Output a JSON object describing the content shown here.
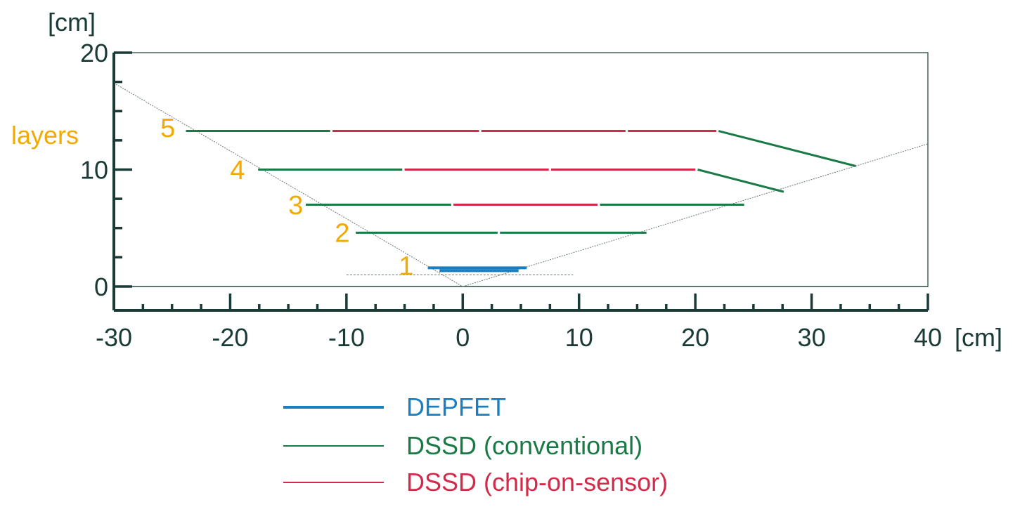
{
  "colors": {
    "axis": "#1a3a36",
    "layer_label": "#f2a900",
    "depfet": "#1a7fc1",
    "dssd_conventional": "#1a7a46",
    "dssd_chip_on_sensor": "#d32a4a",
    "acceptance": "#6a7a78"
  },
  "axes": {
    "y_unit_label": "[cm]",
    "x_unit_label": "[cm]",
    "x_range": [
      -30,
      40
    ],
    "y_range": [
      0,
      20
    ],
    "x_major_ticks": [
      -30,
      -20,
      -10,
      0,
      10,
      20,
      30,
      40
    ],
    "x_tick_labels": [
      "-30",
      "-20",
      "-10",
      "0",
      "10",
      "20",
      "30",
      "40"
    ],
    "y_major_ticks": [
      0,
      10,
      20
    ],
    "y_tick_labels": [
      "0",
      "10",
      "20"
    ],
    "x_minor_step": 2.5,
    "y_minor_step": 2.5
  },
  "layers_label": "layers",
  "layer_numbers": [
    {
      "text": "5",
      "x": -26,
      "y": 12.8
    },
    {
      "text": "4",
      "x": -20,
      "y": 9.2
    },
    {
      "text": "3",
      "x": -15,
      "y": 6.2
    },
    {
      "text": "2",
      "x": -11,
      "y": 3.8
    },
    {
      "text": "1",
      "x": -5.5,
      "y": 1.0
    }
  ],
  "chart_data": {
    "type": "diagram",
    "xlabel": "[cm]",
    "ylabel": "[cm]",
    "xlim": [
      -30,
      40
    ],
    "ylim": [
      0,
      20
    ],
    "acceptance_lines": [
      {
        "x1": -30,
        "y1": 17.4,
        "x2": 0,
        "y2": 0
      },
      {
        "x1": 0,
        "y1": 0,
        "x2": 40,
        "y2": 12.2
      }
    ],
    "beam_line": {
      "x1": -10,
      "y1": 1.0,
      "x2": 9.5,
      "y2": 1.0
    },
    "segments": [
      {
        "kind": "depfet",
        "x1": -3,
        "x2": 5.5,
        "y": 1.6
      },
      {
        "kind": "depfet",
        "x1": -2,
        "x2": 4.8,
        "y": 1.35
      },
      {
        "kind": "dssd_conventional",
        "x1": -9.2,
        "x2": 3.0,
        "y": 4.6
      },
      {
        "kind": "dssd_conventional",
        "x1": 3.2,
        "x2": 15.8,
        "y": 4.6
      },
      {
        "kind": "dssd_conventional",
        "x1": -13.5,
        "x2": -1.0,
        "y": 7.0
      },
      {
        "kind": "dssd_chip_on_sensor",
        "x1": -0.8,
        "x2": 11.6,
        "y": 7.0
      },
      {
        "kind": "dssd_conventional",
        "x1": 11.8,
        "x2": 24.2,
        "y": 7.0
      },
      {
        "kind": "dssd_conventional",
        "x1": -17.6,
        "x2": -5.2,
        "y": 10.0
      },
      {
        "kind": "dssd_chip_on_sensor",
        "x1": -5.0,
        "x2": 7.4,
        "y": 10.0
      },
      {
        "kind": "dssd_chip_on_sensor",
        "x1": 7.6,
        "x2": 20.0,
        "y": 10.0
      },
      {
        "kind": "dssd_conventional",
        "x1": 20.2,
        "x2": 27.6,
        "y1": 10.0,
        "y2": 8.1
      },
      {
        "kind": "dssd_conventional",
        "x1": -23.8,
        "x2": -11.4,
        "y": 13.3
      },
      {
        "kind": "dssd_chip_on_sensor",
        "x1": -11.2,
        "x2": 1.4,
        "y": 13.3
      },
      {
        "kind": "dssd_chip_on_sensor",
        "x1": 1.6,
        "x2": 14.0,
        "y": 13.3
      },
      {
        "kind": "dssd_chip_on_sensor",
        "x1": 14.2,
        "x2": 21.8,
        "y": 13.3
      },
      {
        "kind": "dssd_conventional",
        "x1": 22.0,
        "x2": 33.8,
        "y1": 13.3,
        "y2": 10.3
      }
    ]
  },
  "legend": [
    {
      "label": "DEPFET",
      "kind": "depfet"
    },
    {
      "label": "DSSD (conventional)",
      "kind": "dssd_conventional"
    },
    {
      "label": "DSSD (chip-on-sensor)",
      "kind": "dssd_chip_on_sensor"
    }
  ]
}
